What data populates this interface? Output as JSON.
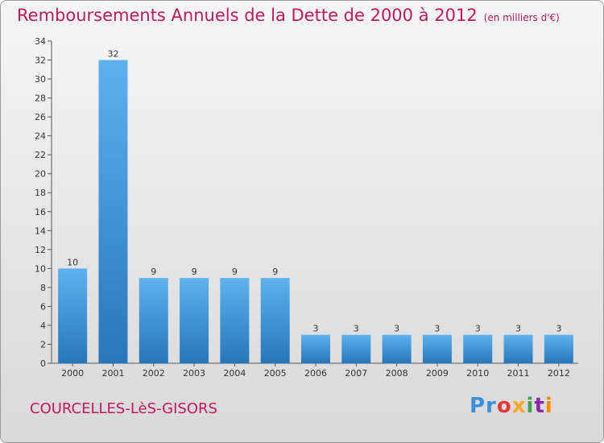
{
  "header": {
    "title": "Remboursements Annuels de la Dette de 2000 à 2012",
    "unit": "(en milliers d'€)"
  },
  "footer": {
    "commune": "COURCELLES-LèS-GISORS",
    "logo": [
      "Pr",
      "o",
      "x",
      "i",
      "t",
      "i"
    ]
  },
  "colors": {
    "bar_light": "#5aaee8",
    "bar_dark": "#2a7bbf",
    "text_accent": "#c2185b"
  },
  "chart_data": {
    "type": "bar",
    "title": "Remboursements Annuels de la Dette de 2000 à 2012",
    "subtitle": "(en milliers d'€)",
    "categories": [
      "2000",
      "2001",
      "2002",
      "2003",
      "2004",
      "2005",
      "2006",
      "2007",
      "2008",
      "2009",
      "2010",
      "2011",
      "2012"
    ],
    "values": [
      10,
      32,
      9,
      9,
      9,
      9,
      3,
      3,
      3,
      3,
      3,
      3,
      3
    ],
    "ylim": [
      0,
      34
    ],
    "yticks": [
      0,
      2,
      4,
      6,
      8,
      10,
      12,
      14,
      16,
      18,
      20,
      22,
      24,
      26,
      28,
      30,
      32,
      34
    ],
    "grid": false,
    "legend": "none"
  }
}
